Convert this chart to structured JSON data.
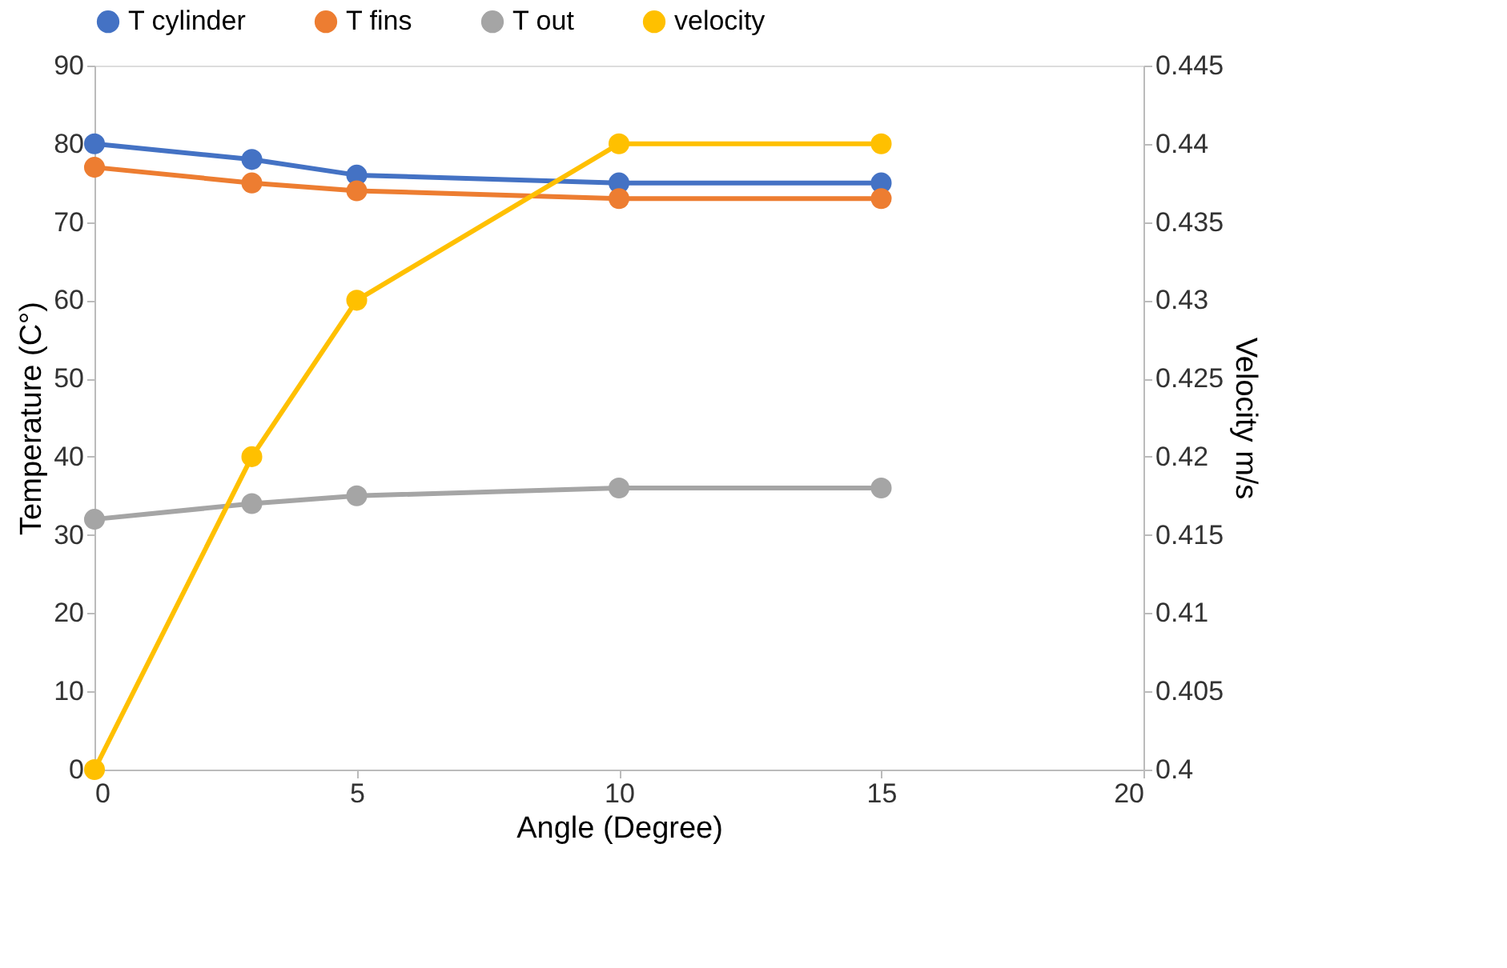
{
  "chart_data": {
    "type": "line",
    "xlabel": "Angle (Degree)",
    "ylabel": "Temperature (C°)",
    "y2label": "Velocity m/s",
    "x": [
      0,
      3,
      5,
      10,
      15
    ],
    "series": [
      {
        "name": "T cylinder",
        "color": "#4472c4",
        "values": [
          80,
          78,
          76,
          75,
          75
        ]
      },
      {
        "name": "T fins",
        "color": "#ed7d31",
        "values": [
          77,
          75,
          74,
          73,
          73
        ]
      },
      {
        "name": "T out",
        "color": "#a5a5a5",
        "values": [
          32,
          34,
          35,
          36,
          36
        ]
      },
      {
        "name": "velocity",
        "color": "#ffc000",
        "values": [
          0.4,
          0.42,
          0.43,
          0.44,
          0.44
        ],
        "axis": "y2"
      }
    ],
    "xlim": [
      0,
      20
    ],
    "xticks": [
      0,
      5,
      10,
      15,
      20
    ],
    "ylim": [
      0,
      90
    ],
    "yticks": [
      0,
      10,
      20,
      30,
      40,
      50,
      60,
      70,
      80,
      90
    ],
    "y2lim": [
      0.4,
      0.445
    ],
    "y2ticks": [
      0.4,
      0.405,
      0.41,
      0.415,
      0.42,
      0.425,
      0.43,
      0.435,
      0.44,
      0.445
    ],
    "grid": false,
    "legend": "top",
    "marker": "circle",
    "line_style": "solid"
  }
}
